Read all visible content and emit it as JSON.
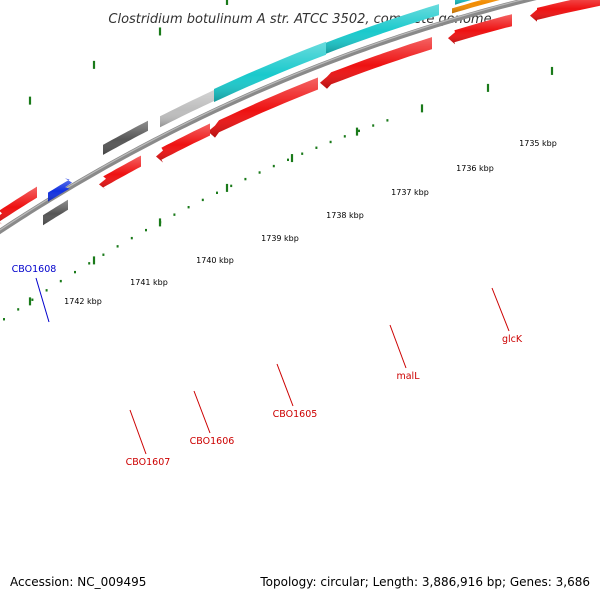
{
  "title": "Clostridium botulinum A str. ATCC 3502, complete genome",
  "footer": {
    "accession": "Accession: NC_009495",
    "topology": "Topology: circular; Length: 3,886,916 bp; Genes: 3,686"
  },
  "colors": {
    "background": "#ffffff",
    "backbone": "#7a7a7a",
    "tick": "#1a7a1a",
    "red_gene": "#ee1111",
    "cyan_gene": "#19c9cc",
    "orange_gene": "#f28c00",
    "dark_gray_gene": "#555555",
    "light_gray_gene": "#bdbdbd",
    "blue_gene": "#1030e0",
    "label_red": "#cc0000",
    "label_blue": "#0000cc"
  },
  "tick_labels": [
    {
      "text": "1735 kbp"
    },
    {
      "text": "1736 kbp"
    },
    {
      "text": "1737 kbp"
    },
    {
      "text": "1738 kbp"
    },
    {
      "text": "1739 kbp"
    },
    {
      "text": "1740 kbp"
    },
    {
      "text": "1741 kbp"
    },
    {
      "text": "1742 kbp"
    }
  ],
  "gene_labels": [
    {
      "text": "CBO1608",
      "color": "blue"
    },
    {
      "text": "CBO1607",
      "color": "red"
    },
    {
      "text": "CBO1606",
      "color": "red"
    },
    {
      "text": "CBO1605",
      "color": "red"
    },
    {
      "text": "malL",
      "color": "red"
    },
    {
      "text": "glcK",
      "color": "red"
    }
  ]
}
